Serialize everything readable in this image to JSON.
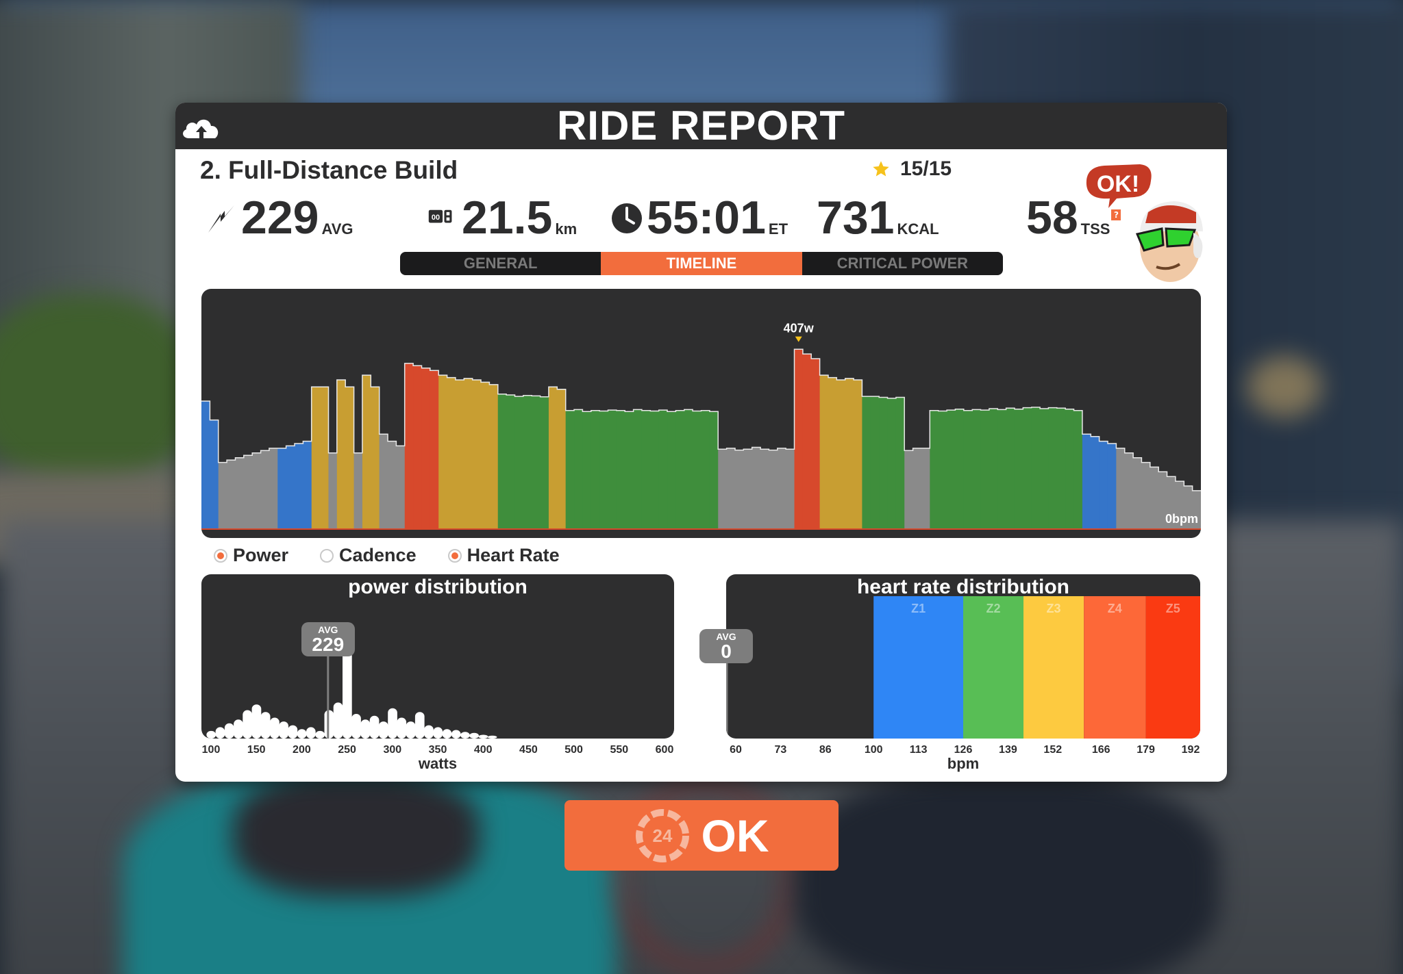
{
  "header": {
    "title": "RIDE REPORT",
    "upload_icon": "cloud-upload-icon"
  },
  "workout": {
    "name": "2. Full-Distance Build",
    "rating": "15/15",
    "rating_icon": "star-icon"
  },
  "stats": {
    "power": {
      "value": "229",
      "unit": "AVG",
      "icon": "power-bolt-icon"
    },
    "distance": {
      "value": "21.5",
      "unit": "km",
      "icon": "odometer-icon"
    },
    "time": {
      "value": "55:01",
      "unit": "ET",
      "icon": "clock-icon"
    },
    "calories": {
      "value": "731",
      "unit": "KCAL"
    },
    "tss": {
      "value": "58",
      "unit": "TSS",
      "help": "?"
    }
  },
  "avatar": {
    "bubble": "OK!"
  },
  "tabs": [
    {
      "label": "GENERAL",
      "active": false
    },
    {
      "label": "TIMELINE",
      "active": true
    },
    {
      "label": "CRITICAL POWER",
      "active": false
    }
  ],
  "timeline": {
    "peak_label": "407w",
    "end_label": "0bpm"
  },
  "legend": [
    {
      "label": "Power",
      "checked": true
    },
    {
      "label": "Cadence",
      "checked": false
    },
    {
      "label": "Heart Rate",
      "checked": true
    }
  ],
  "power_distribution": {
    "title": "power distribution",
    "axis_label": "watts",
    "avg_key": "AVG",
    "avg_value": "229",
    "ticks": [
      "100",
      "150",
      "200",
      "250",
      "300",
      "350",
      "400",
      "450",
      "500",
      "550",
      "600"
    ]
  },
  "hr_distribution": {
    "title": "heart rate distribution",
    "axis_label": "bpm",
    "avg_key": "AVG",
    "avg_value": "0",
    "ticks": [
      "60",
      "73",
      "86",
      "100",
      "113",
      "126",
      "139",
      "152",
      "166",
      "179",
      "192"
    ],
    "zones": [
      {
        "label": "Z1",
        "color": "#2f86f5"
      },
      {
        "label": "Z2",
        "color": "#58be55"
      },
      {
        "label": "Z3",
        "color": "#fdca40"
      },
      {
        "label": "Z4",
        "color": "#fd6838"
      },
      {
        "label": "Z5",
        "color": "#fa3a12"
      }
    ]
  },
  "ok_button": {
    "label": "OK",
    "badge": "24"
  },
  "colors": {
    "accent": "#f26d3d",
    "zone_gray": "#8a8a8a",
    "zone_blue": "#3575c9",
    "zone_green": "#3f8e3c",
    "zone_yellow": "#c89e32",
    "zone_orange": "#e0763c",
    "zone_red": "#d7492c"
  },
  "chart_data": [
    {
      "type": "area",
      "name": "timeline",
      "segments": [
        {
          "zone": "blue",
          "watts": [
            270,
            230
          ]
        },
        {
          "zone": "gray",
          "watts": [
            140,
            145,
            150,
            155,
            160,
            165,
            170
          ]
        },
        {
          "zone": "blue",
          "watts": [
            170,
            175,
            180,
            185
          ]
        },
        {
          "zone": "yellow",
          "watts": [
            300,
            300
          ]
        },
        {
          "zone": "gray",
          "watts": [
            160
          ]
        },
        {
          "zone": "yellow",
          "watts": [
            315,
            300
          ]
        },
        {
          "zone": "gray",
          "watts": [
            160
          ]
        },
        {
          "zone": "yellow",
          "watts": [
            325,
            300
          ]
        },
        {
          "zone": "gray",
          "watts": [
            200,
            185,
            175
          ]
        },
        {
          "zone": "red",
          "watts": [
            350,
            345,
            340,
            335
          ]
        },
        {
          "zone": "yellow",
          "watts": [
            325,
            320,
            315,
            318,
            315,
            310,
            305
          ]
        },
        {
          "zone": "green",
          "watts": [
            285,
            283,
            280,
            282,
            281,
            279
          ]
        },
        {
          "zone": "yellow",
          "watts": [
            300,
            295
          ]
        },
        {
          "zone": "green",
          "watts": [
            250,
            252,
            248,
            250,
            249,
            251,
            250,
            248,
            252,
            250,
            249,
            251,
            248,
            250,
            252,
            249,
            250,
            248
          ]
        },
        {
          "zone": "gray",
          "watts": [
            168,
            170,
            166,
            168,
            172,
            168,
            166,
            170,
            168
          ]
        },
        {
          "zone": "red",
          "watts": [
            380,
            370,
            360
          ]
        },
        {
          "zone": "yellow",
          "watts": [
            325,
            320,
            315,
            318,
            315
          ]
        },
        {
          "zone": "green",
          "watts": [
            280,
            280,
            278,
            276,
            278
          ]
        },
        {
          "zone": "gray",
          "watts": [
            165,
            170,
            170
          ]
        },
        {
          "zone": "green",
          "watts": [
            250,
            249,
            251,
            253,
            250,
            252,
            251,
            254,
            252,
            255,
            253,
            256,
            257,
            254,
            256,
            255,
            253,
            250
          ]
        },
        {
          "zone": "blue",
          "watts": [
            200,
            195,
            185,
            180
          ]
        },
        {
          "zone": "gray",
          "watts": [
            170,
            160,
            150,
            140,
            130,
            120,
            110,
            100,
            90,
            80
          ]
        }
      ],
      "peak": {
        "value": 407,
        "label": "407w"
      },
      "ylim": [
        0,
        450
      ]
    },
    {
      "type": "bar",
      "name": "power distribution",
      "xlabel": "watts",
      "x": [
        100,
        110,
        120,
        130,
        140,
        150,
        160,
        170,
        180,
        190,
        200,
        210,
        220,
        230,
        240,
        250,
        260,
        270,
        280,
        290,
        300,
        310,
        320,
        330,
        340,
        350,
        360,
        370,
        380,
        390,
        400,
        410
      ],
      "values": [
        8,
        12,
        16,
        20,
        30,
        36,
        28,
        22,
        18,
        14,
        10,
        12,
        8,
        30,
        38,
        120,
        26,
        20,
        24,
        18,
        32,
        22,
        18,
        28,
        14,
        12,
        10,
        9,
        7,
        6,
        4,
        3
      ],
      "ylim": [
        0,
        130
      ],
      "xlim": [
        100,
        600
      ],
      "average": 229
    },
    {
      "type": "bar",
      "name": "heart rate distribution",
      "xlabel": "bpm",
      "x": [
        "Z1",
        "Z2",
        "Z3",
        "Z4",
        "Z5"
      ],
      "values": [
        1,
        1,
        1,
        1,
        1
      ],
      "xlim": [
        60,
        192
      ],
      "average": 0
    }
  ]
}
